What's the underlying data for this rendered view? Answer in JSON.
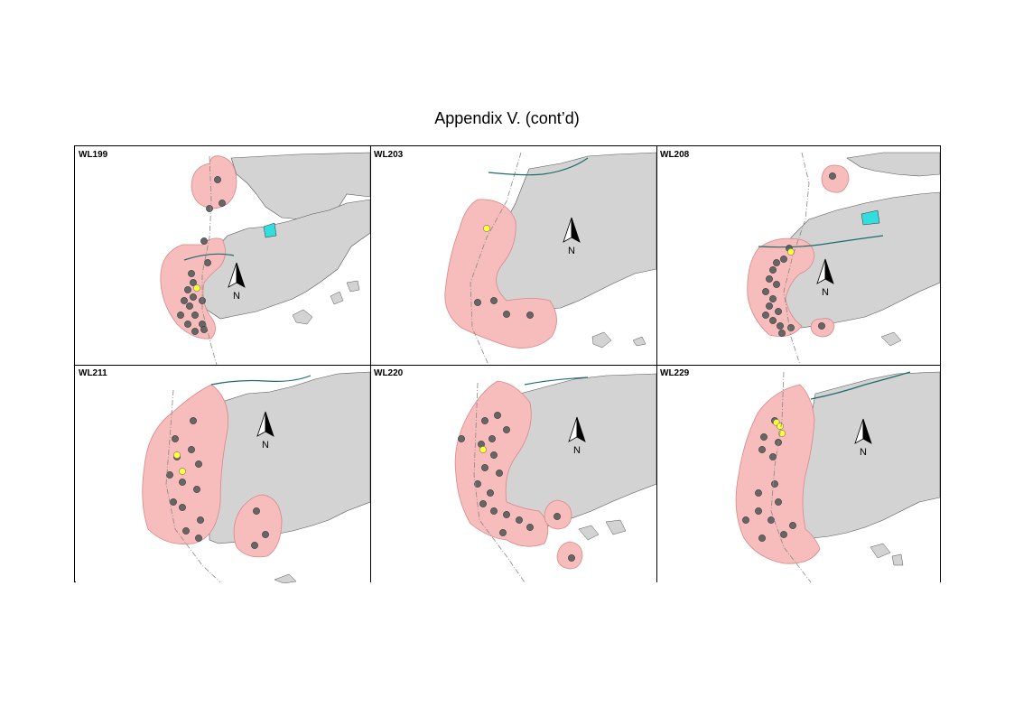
{
  "title": "Appendix V.  (cont’d)",
  "north_label": "N",
  "panels": [
    {
      "label": "WL199"
    },
    {
      "label": "WL203"
    },
    {
      "label": "WL208"
    },
    {
      "label": "WL211"
    },
    {
      "label": "WL220"
    },
    {
      "label": "WL229"
    }
  ],
  "colors": {
    "land": "#d3d3d3",
    "range": "#f7bcbc",
    "range_edge": "#d88888",
    "sighting": "#666666",
    "sighting_highlight": "#ffff33",
    "reservoir": "#33dddd",
    "road": "#1f6b6b"
  }
}
